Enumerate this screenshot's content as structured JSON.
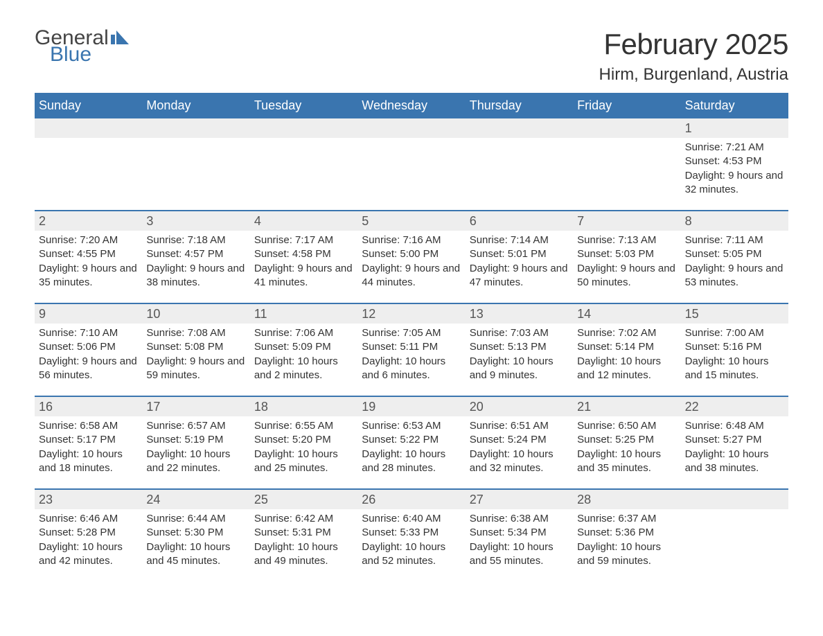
{
  "brand": {
    "text1": "General",
    "text2": "Blue",
    "icon_color": "#3a75af",
    "color1": "#444444",
    "color2": "#3a75af"
  },
  "title": "February 2025",
  "location": "Hirm, Burgenland, Austria",
  "theme": {
    "header_bg": "#3a75af",
    "header_text": "#ffffff",
    "daynum_bg": "#eeeeee",
    "rule_color": "#3a75af",
    "body_text": "#333333",
    "page_bg": "#ffffff"
  },
  "day_headers": [
    "Sunday",
    "Monday",
    "Tuesday",
    "Wednesday",
    "Thursday",
    "Friday",
    "Saturday"
  ],
  "weeks": [
    {
      "nums": [
        "",
        "",
        "",
        "",
        "",
        "",
        "1"
      ],
      "cells": [
        "",
        "",
        "",
        "",
        "",
        "",
        "Sunrise: 7:21 AM\nSunset: 4:53 PM\nDaylight: 9 hours and 32 minutes."
      ]
    },
    {
      "nums": [
        "2",
        "3",
        "4",
        "5",
        "6",
        "7",
        "8"
      ],
      "cells": [
        "Sunrise: 7:20 AM\nSunset: 4:55 PM\nDaylight: 9 hours and 35 minutes.",
        "Sunrise: 7:18 AM\nSunset: 4:57 PM\nDaylight: 9 hours and 38 minutes.",
        "Sunrise: 7:17 AM\nSunset: 4:58 PM\nDaylight: 9 hours and 41 minutes.",
        "Sunrise: 7:16 AM\nSunset: 5:00 PM\nDaylight: 9 hours and 44 minutes.",
        "Sunrise: 7:14 AM\nSunset: 5:01 PM\nDaylight: 9 hours and 47 minutes.",
        "Sunrise: 7:13 AM\nSunset: 5:03 PM\nDaylight: 9 hours and 50 minutes.",
        "Sunrise: 7:11 AM\nSunset: 5:05 PM\nDaylight: 9 hours and 53 minutes."
      ]
    },
    {
      "nums": [
        "9",
        "10",
        "11",
        "12",
        "13",
        "14",
        "15"
      ],
      "cells": [
        "Sunrise: 7:10 AM\nSunset: 5:06 PM\nDaylight: 9 hours and 56 minutes.",
        "Sunrise: 7:08 AM\nSunset: 5:08 PM\nDaylight: 9 hours and 59 minutes.",
        "Sunrise: 7:06 AM\nSunset: 5:09 PM\nDaylight: 10 hours and 2 minutes.",
        "Sunrise: 7:05 AM\nSunset: 5:11 PM\nDaylight: 10 hours and 6 minutes.",
        "Sunrise: 7:03 AM\nSunset: 5:13 PM\nDaylight: 10 hours and 9 minutes.",
        "Sunrise: 7:02 AM\nSunset: 5:14 PM\nDaylight: 10 hours and 12 minutes.",
        "Sunrise: 7:00 AM\nSunset: 5:16 PM\nDaylight: 10 hours and 15 minutes."
      ]
    },
    {
      "nums": [
        "16",
        "17",
        "18",
        "19",
        "20",
        "21",
        "22"
      ],
      "cells": [
        "Sunrise: 6:58 AM\nSunset: 5:17 PM\nDaylight: 10 hours and 18 minutes.",
        "Sunrise: 6:57 AM\nSunset: 5:19 PM\nDaylight: 10 hours and 22 minutes.",
        "Sunrise: 6:55 AM\nSunset: 5:20 PM\nDaylight: 10 hours and 25 minutes.",
        "Sunrise: 6:53 AM\nSunset: 5:22 PM\nDaylight: 10 hours and 28 minutes.",
        "Sunrise: 6:51 AM\nSunset: 5:24 PM\nDaylight: 10 hours and 32 minutes.",
        "Sunrise: 6:50 AM\nSunset: 5:25 PM\nDaylight: 10 hours and 35 minutes.",
        "Sunrise: 6:48 AM\nSunset: 5:27 PM\nDaylight: 10 hours and 38 minutes."
      ]
    },
    {
      "nums": [
        "23",
        "24",
        "25",
        "26",
        "27",
        "28",
        ""
      ],
      "cells": [
        "Sunrise: 6:46 AM\nSunset: 5:28 PM\nDaylight: 10 hours and 42 minutes.",
        "Sunrise: 6:44 AM\nSunset: 5:30 PM\nDaylight: 10 hours and 45 minutes.",
        "Sunrise: 6:42 AM\nSunset: 5:31 PM\nDaylight: 10 hours and 49 minutes.",
        "Sunrise: 6:40 AM\nSunset: 5:33 PM\nDaylight: 10 hours and 52 minutes.",
        "Sunrise: 6:38 AM\nSunset: 5:34 PM\nDaylight: 10 hours and 55 minutes.",
        "Sunrise: 6:37 AM\nSunset: 5:36 PM\nDaylight: 10 hours and 59 minutes.",
        ""
      ]
    }
  ]
}
